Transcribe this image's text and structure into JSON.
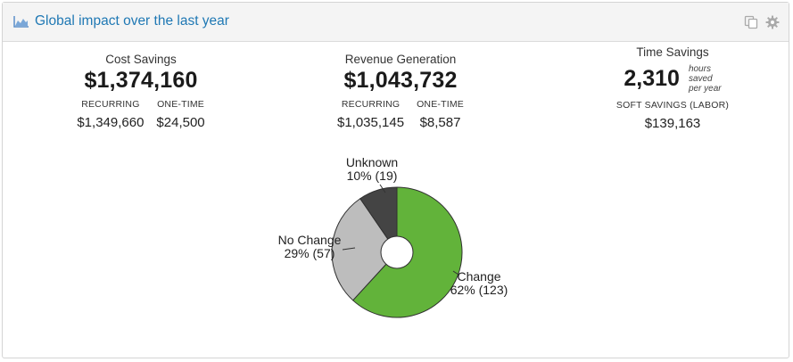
{
  "header": {
    "title": "Global impact over the last year",
    "title_icon": "area-chart-icon",
    "tools": [
      "copy-icon",
      "gear-icon"
    ]
  },
  "cost_savings": {
    "label": "Cost Savings",
    "total": "$1,374,160",
    "recurring_label": "RECURRING",
    "recurring_value": "$1,349,660",
    "onetime_label": "ONE-TIME",
    "onetime_value": "$24,500"
  },
  "revenue_generation": {
    "label": "Revenue Generation",
    "total": "$1,043,732",
    "recurring_label": "RECURRING",
    "recurring_value": "$1,035,145",
    "onetime_label": "ONE-TIME",
    "onetime_value": "$8,587"
  },
  "time_savings": {
    "label": "Time Savings",
    "value": "2,310",
    "unit_line1": "hours",
    "unit_line2": "saved",
    "unit_line3": "per year",
    "soft_label": "SOFT SAVINGS (LABOR)",
    "soft_value": "$139,163"
  },
  "chart_data": {
    "type": "pie",
    "donut": true,
    "slices": [
      {
        "name": "Change",
        "percent_label": "62% (123)",
        "value": 123,
        "color": "#62b33a"
      },
      {
        "name": "No Change",
        "percent_label": "29% (57)",
        "value": 57,
        "color": "#bdbdbd"
      },
      {
        "name": "Unknown",
        "percent_label": "10% (19)",
        "value": 19,
        "color": "#444444"
      }
    ]
  }
}
